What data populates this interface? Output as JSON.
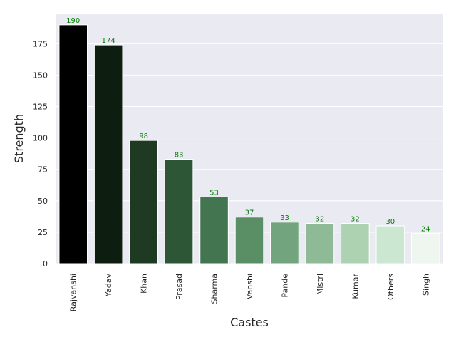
{
  "chart_data": {
    "type": "bar",
    "title": "",
    "xlabel": "Castes",
    "ylabel": "Strength",
    "categories": [
      "Rajvanshi",
      "Yadav",
      "Khan",
      "Prasad",
      "Sharma",
      "Vanshi",
      "Pande",
      "Mistri",
      "Kumar",
      "Others",
      "Singh"
    ],
    "values": [
      190,
      174,
      98,
      83,
      53,
      37,
      33,
      32,
      32,
      30,
      24
    ],
    "data_labels": [
      "190",
      "174",
      "98",
      "83",
      "53",
      "37",
      "33",
      "32",
      "32",
      "30",
      "24"
    ],
    "ylim": [
      0,
      199
    ],
    "yticks": [
      0,
      25,
      50,
      75,
      100,
      125,
      150,
      175
    ],
    "ytick_labels": [
      "0",
      "25",
      "50",
      "75",
      "100",
      "125",
      "150",
      "175"
    ],
    "grid": true,
    "legend": false,
    "colors": {
      "background": "#eaeaf2",
      "grid": "#ffffff",
      "data_label": "#008000",
      "bar_edge": "#ffffff",
      "bars": [
        "#000000",
        "#0d1d0f",
        "#1e3a23",
        "#2d5637",
        "#427550",
        "#5a8f66",
        "#72a47d",
        "#8fba96",
        "#acd2b1",
        "#cbe6d1",
        "#eef6ef"
      ]
    }
  }
}
